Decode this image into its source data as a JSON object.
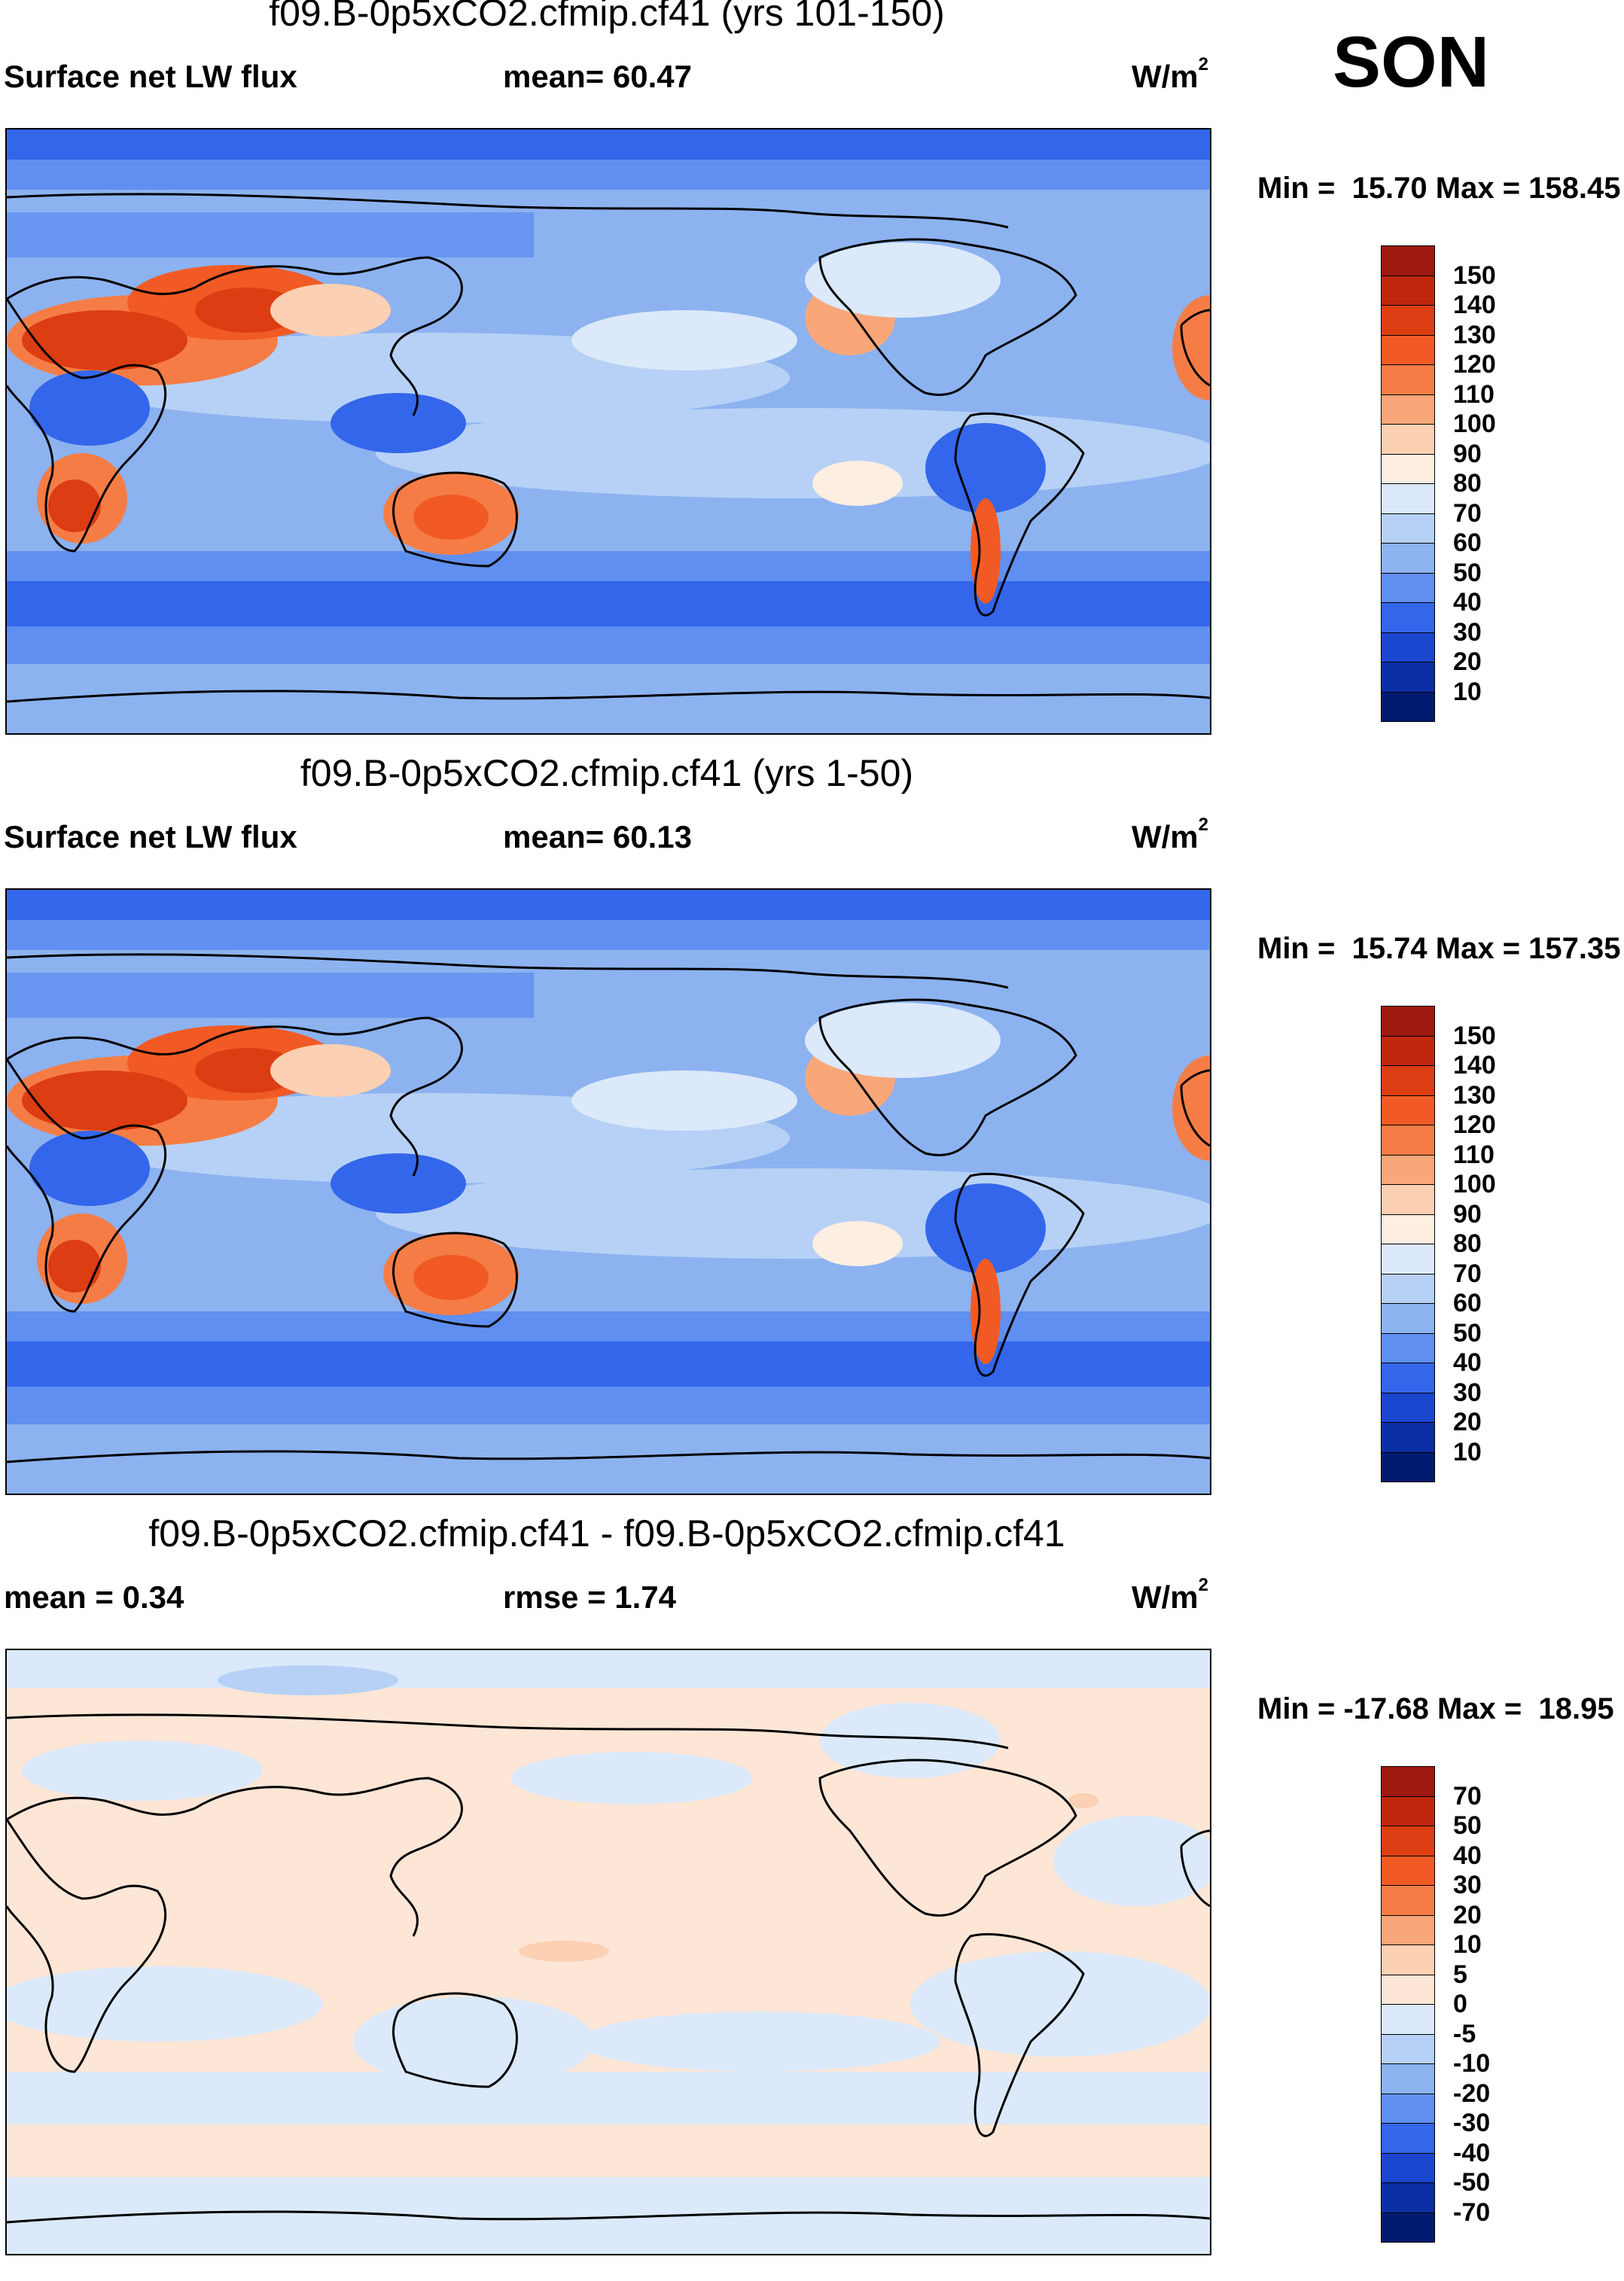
{
  "season": "SON",
  "panels": [
    {
      "id": "p1",
      "title": "f09.B-0p5xCO2.cfmip.cf41 (yrs 101-150)",
      "left_label": "Surface net LW flux",
      "mid_label": "mean=  60.47",
      "units_base": "W/m",
      "units_sup": "2",
      "minmax": "Min =  15.70 Max = 158.45",
      "levels": [
        "150",
        "140",
        "130",
        "120",
        "110",
        "100",
        "90",
        "80",
        "70",
        "60",
        "50",
        "40",
        "30",
        "20",
        "10"
      ],
      "colors": [
        "#9e1a10",
        "#c0280e",
        "#dc3d12",
        "#f15a24",
        "#f57d45",
        "#f9a779",
        "#fcd0b3",
        "#fdeee2",
        "#dbe9fa",
        "#b7d1f6",
        "#8cb2f0",
        "#5f8ff0",
        "#3366ea",
        "#1b46cf",
        "#0c2fa5",
        "#001b70"
      ]
    },
    {
      "id": "p2",
      "title": "f09.B-0p5xCO2.cfmip.cf41 (yrs 1-50)",
      "left_label": "Surface net LW flux",
      "mid_label": "mean=  60.13",
      "units_base": "W/m",
      "units_sup": "2",
      "minmax": "Min =  15.74 Max = 157.35",
      "levels": [
        "150",
        "140",
        "130",
        "120",
        "110",
        "100",
        "90",
        "80",
        "70",
        "60",
        "50",
        "40",
        "30",
        "20",
        "10"
      ],
      "colors": [
        "#9e1a10",
        "#c0280e",
        "#dc3d12",
        "#f15a24",
        "#f57d45",
        "#f9a779",
        "#fcd0b3",
        "#fdeee2",
        "#dbe9fa",
        "#b7d1f6",
        "#8cb2f0",
        "#5f8ff0",
        "#3366ea",
        "#1b46cf",
        "#0c2fa5",
        "#001b70"
      ]
    },
    {
      "id": "p3",
      "title": "f09.B-0p5xCO2.cfmip.cf41 - f09.B-0p5xCO2.cfmip.cf41",
      "left_label": "mean =   0.34",
      "mid_label": "rmse =   1.74",
      "units_base": "W/m",
      "units_sup": "2",
      "minmax": "Min = -17.68 Max =  18.95",
      "levels": [
        "70",
        "50",
        "40",
        "30",
        "20",
        "10",
        "5",
        "0",
        "-5",
        "-10",
        "-20",
        "-30",
        "-40",
        "-50",
        "-70"
      ],
      "colors": [
        "#9e1a10",
        "#c0280e",
        "#dc3d12",
        "#f15a24",
        "#f57d45",
        "#f9a779",
        "#fcd0b3",
        "#fde6d6",
        "#dbe9fa",
        "#b7d1f6",
        "#8cb2f0",
        "#5f8ff0",
        "#3366ea",
        "#1b46cf",
        "#0c2fa5",
        "#001b70"
      ]
    }
  ]
}
